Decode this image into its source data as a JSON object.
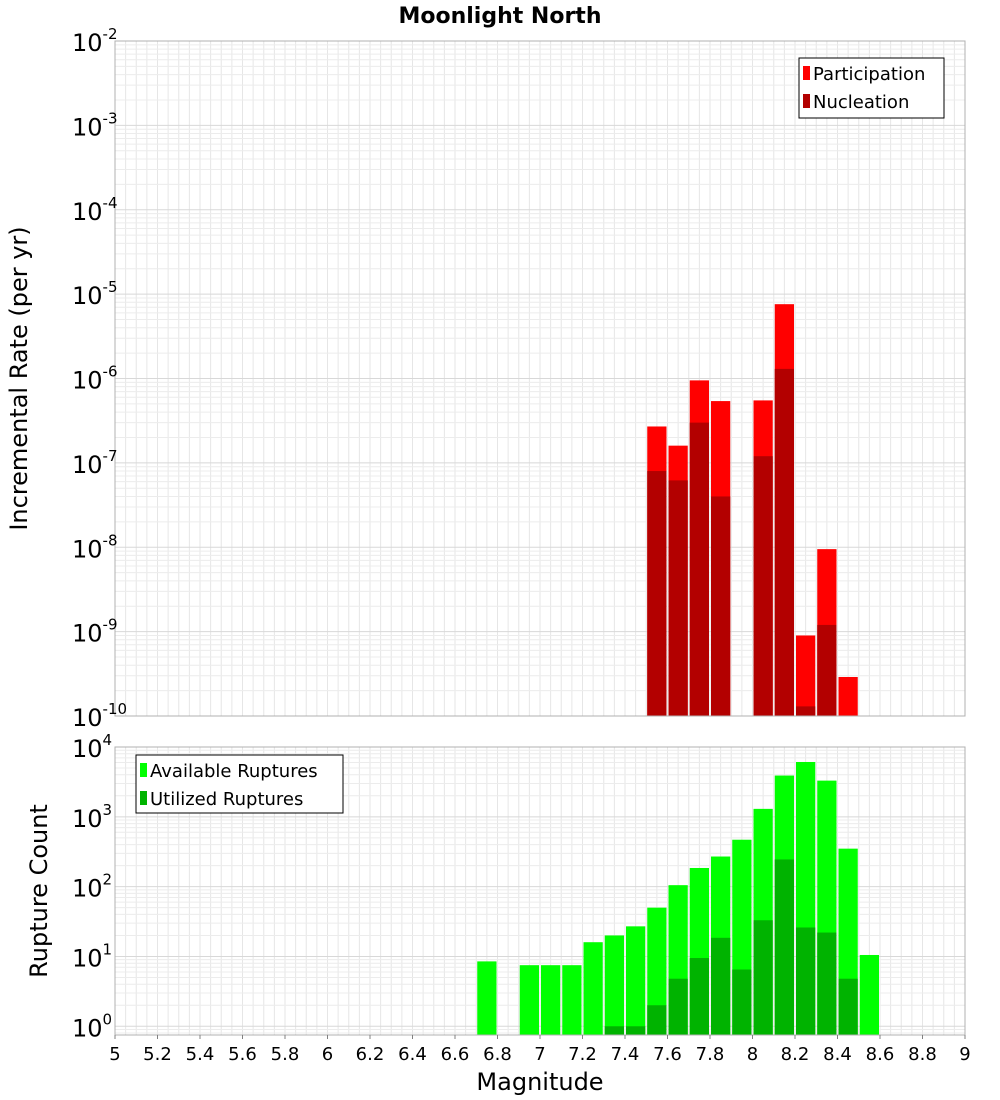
{
  "chart_data": {
    "title": "Moonlight North",
    "xlabel": "Magnitude",
    "xlim": [
      5,
      9
    ],
    "xticks": [
      "5",
      "5.2",
      "5.4",
      "5.6",
      "5.8",
      "6",
      "6.2",
      "6.4",
      "6.6",
      "6.8",
      "7",
      "7.2",
      "7.4",
      "7.6",
      "7.8",
      "8",
      "8.2",
      "8.4",
      "8.6",
      "8.8",
      "9"
    ],
    "bin_width": 0.1,
    "panels": [
      {
        "type": "bar",
        "ylabel": "Incremental Rate (per yr)",
        "yscale": "log",
        "ylim": [
          1e-10,
          0.01
        ],
        "yticks": [
          {
            "base": "10",
            "exp": "-10"
          },
          {
            "base": "10",
            "exp": "-9"
          },
          {
            "base": "10",
            "exp": "-8"
          },
          {
            "base": "10",
            "exp": "-7"
          },
          {
            "base": "10",
            "exp": "-6"
          },
          {
            "base": "10",
            "exp": "-5"
          },
          {
            "base": "10",
            "exp": "-4"
          },
          {
            "base": "10",
            "exp": "-3"
          },
          {
            "base": "10",
            "exp": "-2"
          }
        ],
        "grid": true,
        "legend_position": "top-right",
        "series": [
          {
            "name": "Participation",
            "color": "#ff0000",
            "points": [
              {
                "x": 7.55,
                "y": 2.7e-07
              },
              {
                "x": 7.65,
                "y": 1.6e-07
              },
              {
                "x": 7.75,
                "y": 9.5e-07
              },
              {
                "x": 7.85,
                "y": 5.4e-07
              },
              {
                "x": 8.05,
                "y": 5.5e-07
              },
              {
                "x": 8.15,
                "y": 7.6e-06
              },
              {
                "x": 8.25,
                "y": 9e-10
              },
              {
                "x": 8.35,
                "y": 9.5e-09
              },
              {
                "x": 8.45,
                "y": 2.9e-10
              }
            ]
          },
          {
            "name": "Nucleation",
            "color": "#b30000",
            "points": [
              {
                "x": 7.55,
                "y": 8e-08
              },
              {
                "x": 7.65,
                "y": 6.2e-08
              },
              {
                "x": 7.75,
                "y": 3e-07
              },
              {
                "x": 7.85,
                "y": 4e-08
              },
              {
                "x": 8.05,
                "y": 1.2e-07
              },
              {
                "x": 8.15,
                "y": 1.3e-06
              },
              {
                "x": 8.25,
                "y": 1.3e-10
              },
              {
                "x": 8.35,
                "y": 1.2e-09
              }
            ]
          }
        ]
      },
      {
        "type": "bar",
        "ylabel": "Rupture Count",
        "yscale": "log",
        "ylim": [
          0.75,
          10000
        ],
        "yticks": [
          {
            "base": "10",
            "exp": "0"
          },
          {
            "base": "10",
            "exp": "1"
          },
          {
            "base": "10",
            "exp": "2"
          },
          {
            "base": "10",
            "exp": "3"
          },
          {
            "base": "10",
            "exp": "4"
          }
        ],
        "grid": true,
        "legend_position": "top-left",
        "series": [
          {
            "name": "Available Ruptures",
            "color": "#00ff00",
            "points": [
              {
                "x": 6.75,
                "y": 8.5
              },
              {
                "x": 6.95,
                "y": 7.5
              },
              {
                "x": 7.05,
                "y": 7.5
              },
              {
                "x": 7.15,
                "y": 7.5
              },
              {
                "x": 7.25,
                "y": 16
              },
              {
                "x": 7.35,
                "y": 20
              },
              {
                "x": 7.45,
                "y": 27
              },
              {
                "x": 7.55,
                "y": 50
              },
              {
                "x": 7.65,
                "y": 105
              },
              {
                "x": 7.75,
                "y": 185
              },
              {
                "x": 7.85,
                "y": 270
              },
              {
                "x": 7.95,
                "y": 470
              },
              {
                "x": 8.05,
                "y": 1300
              },
              {
                "x": 8.15,
                "y": 3900
              },
              {
                "x": 8.25,
                "y": 6100
              },
              {
                "x": 8.35,
                "y": 3300
              },
              {
                "x": 8.45,
                "y": 350
              },
              {
                "x": 8.55,
                "y": 10.5
              }
            ]
          },
          {
            "name": "Utilized Ruptures",
            "color": "#00b300",
            "points": [
              {
                "x": 7.35,
                "y": 1
              },
              {
                "x": 7.45,
                "y": 1
              },
              {
                "x": 7.55,
                "y": 2
              },
              {
                "x": 7.65,
                "y": 4.8
              },
              {
                "x": 7.75,
                "y": 9.5
              },
              {
                "x": 7.85,
                "y": 18.5
              },
              {
                "x": 7.95,
                "y": 6.5
              },
              {
                "x": 8.05,
                "y": 33
              },
              {
                "x": 8.15,
                "y": 245
              },
              {
                "x": 8.25,
                "y": 26
              },
              {
                "x": 8.35,
                "y": 22
              },
              {
                "x": 8.45,
                "y": 4.8
              }
            ]
          }
        ]
      }
    ]
  }
}
